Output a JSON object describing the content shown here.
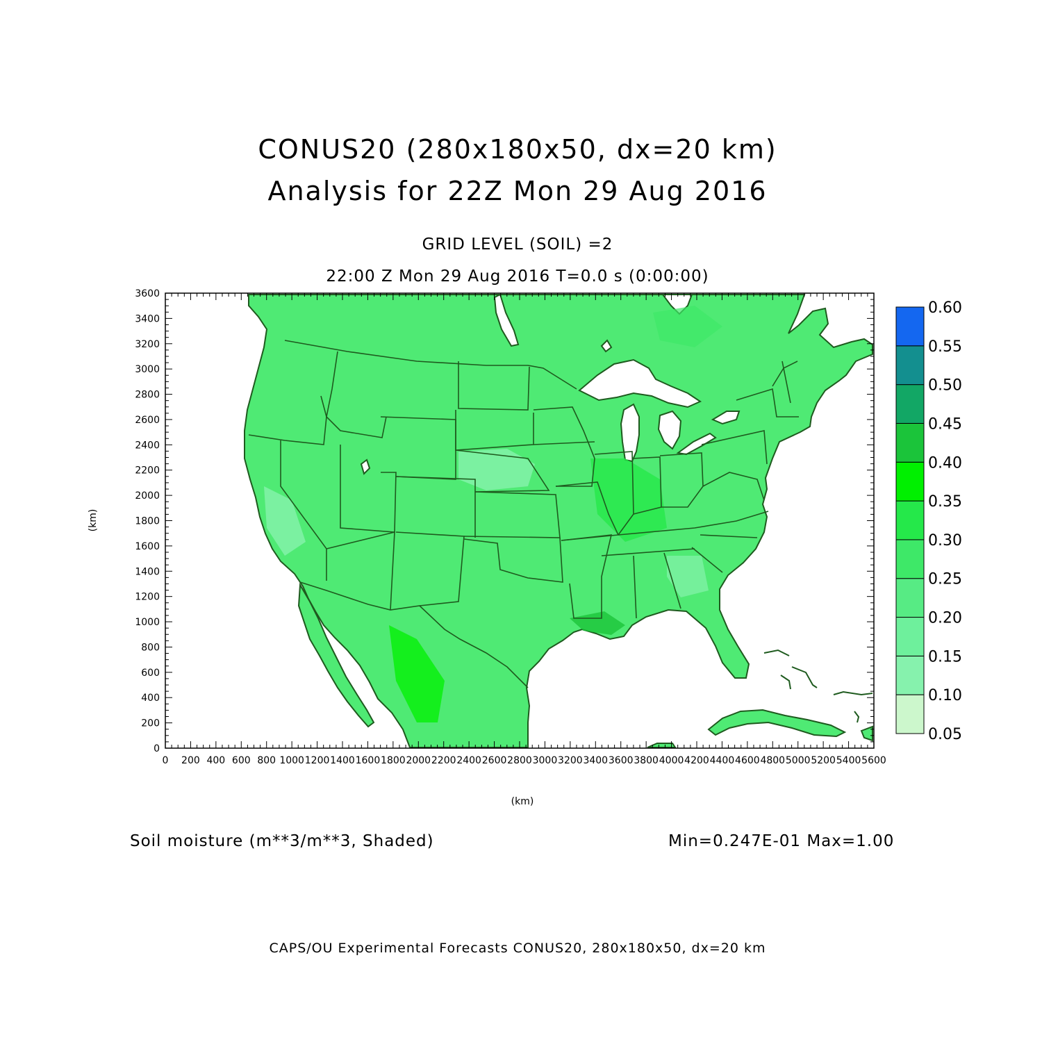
{
  "title": {
    "line1": "CONUS20 (280x180x50, dx=20 km)",
    "line2": "Analysis for 22Z Mon 29 Aug 2016"
  },
  "subtitle": {
    "level": "GRID LEVEL (SOIL) =2",
    "time": "22:00 Z Mon 29 Aug 2016    T=0.0 s (0:00:00)"
  },
  "footer": {
    "variable": "Soil moisture (m**3/m**3, Shaded)",
    "range": "Min=0.247E-01 Max=1.00",
    "credit": "CAPS/OU Experimental Forecasts  CONUS20, 280x180x50, dx=20 km"
  },
  "map": {
    "xlabel": "(km)",
    "ylabel": "(km)",
    "xlim": [
      0,
      5600
    ],
    "ylim": [
      0,
      3600
    ],
    "x_ticks": [
      "0",
      "200",
      "400",
      "600",
      "800",
      "1000",
      "1200",
      "1400",
      "1600",
      "1800",
      "2000",
      "2200",
      "2400",
      "2600",
      "2800",
      "3000",
      "3200",
      "3400",
      "3600",
      "3800",
      "4000",
      "4200",
      "4400",
      "4600",
      "4800",
      "5000",
      "5200",
      "5400",
      "5600"
    ],
    "y_ticks": [
      "0",
      "200",
      "400",
      "600",
      "800",
      "1000",
      "1200",
      "1400",
      "1600",
      "1800",
      "2000",
      "2200",
      "2400",
      "2600",
      "2800",
      "3000",
      "3200",
      "3400",
      "3600"
    ],
    "field_color": "#4fea74",
    "border_color": "#1e5a1e"
  },
  "colorbar": {
    "labels": [
      "0.05",
      "0.10",
      "0.15",
      "0.20",
      "0.25",
      "0.30",
      "0.35",
      "0.40",
      "0.45",
      "0.50",
      "0.55",
      "0.60"
    ],
    "colors": [
      "#ccf7cc",
      "#a8f5c0",
      "#86f2ad",
      "#6ef09c",
      "#57eb84",
      "#3ee868",
      "#25e84a",
      "#00f000",
      "#1bc43a",
      "#12a765",
      "#138f8f",
      "#1467f0"
    ]
  }
}
